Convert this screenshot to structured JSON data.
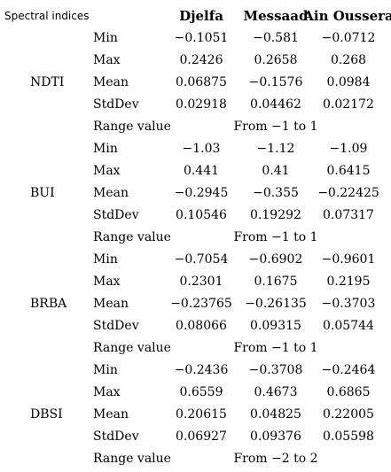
{
  "header": {
    "label": "Spectral indices",
    "columns": [
      "Djelfa",
      "Messaad",
      "Ain Oussera"
    ]
  },
  "groups": [
    {
      "name": "NDTI",
      "rows": [
        {
          "stat": "Min",
          "values": [
            "−0.1051",
            "−0.581",
            "−0.0712"
          ]
        },
        {
          "stat": "Max",
          "values": [
            "0.2426",
            "0.2658",
            "0.268"
          ]
        },
        {
          "stat": "Mean",
          "values": [
            "0.06875",
            "−0.1576",
            "0.0984"
          ]
        },
        {
          "stat": "StdDev",
          "values": [
            "0.02918",
            "0.04462",
            "0.02172"
          ]
        }
      ],
      "range_label": "Range value",
      "range_text": "From −1 to 1"
    },
    {
      "name": "BUI",
      "rows": [
        {
          "stat": "Min",
          "values": [
            "−1.03",
            "−1.12",
            "−1.09"
          ]
        },
        {
          "stat": "Max",
          "values": [
            "0.441",
            "0.41",
            "0.6415"
          ]
        },
        {
          "stat": "Mean",
          "values": [
            "−0.2945",
            "−0.355",
            "−0.22425"
          ]
        },
        {
          "stat": "StdDev",
          "values": [
            "0.10546",
            "0.19292",
            "0.07317"
          ]
        }
      ],
      "range_label": "Range value",
      "range_text": "From −1 to 1"
    },
    {
      "name": "BRBA",
      "rows": [
        {
          "stat": "Min",
          "values": [
            "−0.7054",
            "−0.6902",
            "−0.9601"
          ]
        },
        {
          "stat": "Max",
          "values": [
            "0.2301",
            "0.1675",
            "0.2195"
          ]
        },
        {
          "stat": "Mean",
          "values": [
            "−0.23765",
            "−0.26135",
            "−0.3703"
          ]
        },
        {
          "stat": "StdDev",
          "values": [
            "0.08066",
            "0.09315",
            "0.05744"
          ]
        }
      ],
      "range_label": "Range value",
      "range_text": "From −1 to 1"
    },
    {
      "name": "DBSI",
      "rows": [
        {
          "stat": "Min",
          "values": [
            "−0.2436",
            "−0.3708",
            "−0.2464"
          ]
        },
        {
          "stat": "Max",
          "values": [
            "0.6559",
            "0.4673",
            "0.6865"
          ]
        },
        {
          "stat": "Mean",
          "values": [
            "0.20615",
            "0.04825",
            "0.22005"
          ]
        },
        {
          "stat": "StdDev",
          "values": [
            "0.06927",
            "0.09376",
            "0.05598"
          ]
        }
      ],
      "range_label": "Range value",
      "range_text": "From −2 to 2"
    }
  ]
}
